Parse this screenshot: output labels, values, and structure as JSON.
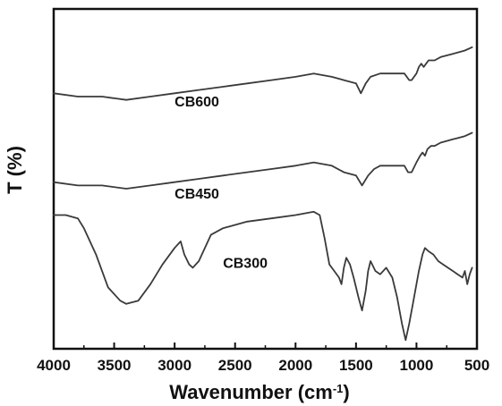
{
  "chart_data": {
    "type": "line",
    "xlabel": "Wavenumber (cm",
    "xlabel_sup": "-1",
    "xlabel_end": ")",
    "ylabel": "T (%)",
    "xlim": [
      4000,
      500
    ],
    "x_reversed": true,
    "ylim": [
      0,
      100
    ],
    "y_ticks_shown": false,
    "x_ticks": [
      4000,
      3500,
      3000,
      2500,
      2000,
      1500,
      1000,
      500
    ],
    "line_color": "#3a3a3a",
    "series": [
      {
        "name": "CB600",
        "label_at": {
          "x": 3000,
          "y": 72
        },
        "points": [
          [
            4000,
            76
          ],
          [
            3800,
            75
          ],
          [
            3600,
            75
          ],
          [
            3400,
            74
          ],
          [
            3200,
            75
          ],
          [
            3000,
            76
          ],
          [
            2800,
            77
          ],
          [
            2600,
            78
          ],
          [
            2400,
            79
          ],
          [
            2200,
            80
          ],
          [
            2000,
            81
          ],
          [
            1850,
            82
          ],
          [
            1700,
            81
          ],
          [
            1600,
            80
          ],
          [
            1500,
            79
          ],
          [
            1460,
            76
          ],
          [
            1420,
            79
          ],
          [
            1380,
            81
          ],
          [
            1300,
            82
          ],
          [
            1200,
            82
          ],
          [
            1100,
            82
          ],
          [
            1060,
            80
          ],
          [
            1040,
            80
          ],
          [
            1000,
            82
          ],
          [
            980,
            84
          ],
          [
            960,
            85
          ],
          [
            940,
            84
          ],
          [
            920,
            85
          ],
          [
            900,
            86
          ],
          [
            850,
            86
          ],
          [
            800,
            87
          ],
          [
            700,
            88
          ],
          [
            600,
            89
          ],
          [
            540,
            90
          ]
        ]
      },
      {
        "name": "CB450",
        "label_at": {
          "x": 3000,
          "y": 44
        },
        "points": [
          [
            4000,
            49
          ],
          [
            3800,
            48
          ],
          [
            3600,
            48
          ],
          [
            3400,
            47
          ],
          [
            3200,
            48
          ],
          [
            3000,
            49
          ],
          [
            2800,
            50
          ],
          [
            2600,
            51
          ],
          [
            2400,
            52
          ],
          [
            2200,
            53
          ],
          [
            2000,
            54
          ],
          [
            1850,
            55
          ],
          [
            1700,
            54
          ],
          [
            1600,
            52
          ],
          [
            1500,
            51
          ],
          [
            1450,
            48
          ],
          [
            1400,
            51
          ],
          [
            1350,
            53
          ],
          [
            1300,
            54
          ],
          [
            1200,
            54
          ],
          [
            1100,
            54
          ],
          [
            1070,
            52
          ],
          [
            1040,
            52
          ],
          [
            1000,
            55
          ],
          [
            970,
            57
          ],
          [
            950,
            58
          ],
          [
            930,
            57
          ],
          [
            910,
            59
          ],
          [
            880,
            60
          ],
          [
            850,
            60
          ],
          [
            800,
            61
          ],
          [
            700,
            62
          ],
          [
            600,
            63
          ],
          [
            540,
            64
          ]
        ]
      },
      {
        "name": "CB300",
        "label_at": {
          "x": 2600,
          "y": 23
        },
        "points": [
          [
            4000,
            39
          ],
          [
            3900,
            39
          ],
          [
            3800,
            38
          ],
          [
            3750,
            35
          ],
          [
            3650,
            27
          ],
          [
            3550,
            17
          ],
          [
            3450,
            13
          ],
          [
            3400,
            12
          ],
          [
            3300,
            13
          ],
          [
            3200,
            18
          ],
          [
            3100,
            24
          ],
          [
            3000,
            29
          ],
          [
            2950,
            31
          ],
          [
            2920,
            27
          ],
          [
            2880,
            24
          ],
          [
            2850,
            23
          ],
          [
            2800,
            25
          ],
          [
            2700,
            33
          ],
          [
            2600,
            35
          ],
          [
            2400,
            37
          ],
          [
            2200,
            38
          ],
          [
            2000,
            39
          ],
          [
            1850,
            40
          ],
          [
            1800,
            39
          ],
          [
            1760,
            32
          ],
          [
            1720,
            24
          ],
          [
            1680,
            22
          ],
          [
            1640,
            20
          ],
          [
            1620,
            18
          ],
          [
            1600,
            23
          ],
          [
            1580,
            26
          ],
          [
            1550,
            24
          ],
          [
            1520,
            20
          ],
          [
            1480,
            14
          ],
          [
            1450,
            10
          ],
          [
            1420,
            16
          ],
          [
            1400,
            22
          ],
          [
            1380,
            25
          ],
          [
            1340,
            22
          ],
          [
            1300,
            21
          ],
          [
            1250,
            23
          ],
          [
            1200,
            20
          ],
          [
            1160,
            14
          ],
          [
            1120,
            6
          ],
          [
            1090,
            1
          ],
          [
            1060,
            6
          ],
          [
            1030,
            12
          ],
          [
            1000,
            18
          ],
          [
            980,
            22
          ],
          [
            950,
            27
          ],
          [
            930,
            29
          ],
          [
            900,
            28
          ],
          [
            860,
            27
          ],
          [
            820,
            25
          ],
          [
            780,
            24
          ],
          [
            740,
            23
          ],
          [
            700,
            22
          ],
          [
            660,
            21
          ],
          [
            620,
            20
          ],
          [
            600,
            22
          ],
          [
            580,
            18
          ],
          [
            560,
            21
          ],
          [
            540,
            23
          ]
        ]
      }
    ]
  }
}
